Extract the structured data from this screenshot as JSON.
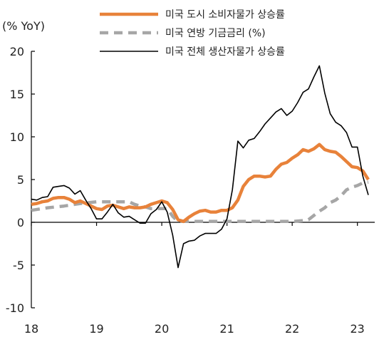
{
  "chart_data": {
    "type": "line",
    "y_unit_label": "(% YoY)",
    "ylim": [
      -10,
      20
    ],
    "y_ticks": [
      "20",
      "15",
      "10",
      "5",
      "0",
      "-5",
      "-10"
    ],
    "y_tick_values": [
      20,
      15,
      10,
      5,
      0,
      -5,
      -10
    ],
    "xlim": [
      2018.0,
      2023.2
    ],
    "x_ticks": [
      "18",
      "19",
      "20",
      "21",
      "22",
      "23"
    ],
    "x_tick_values": [
      2018,
      2019,
      2020,
      2021,
      2022,
      2023
    ],
    "grid": false,
    "legend_position": "top",
    "series": [
      {
        "name": "미국 도시 소비자물가 상승률",
        "color": "#E8823A",
        "style": "solid-thick",
        "x": [
          2018.0,
          2018.083,
          2018.167,
          2018.25,
          2018.333,
          2018.417,
          2018.5,
          2018.583,
          2018.667,
          2018.75,
          2018.833,
          2018.917,
          2019.0,
          2019.083,
          2019.167,
          2019.25,
          2019.333,
          2019.417,
          2019.5,
          2019.583,
          2019.667,
          2019.75,
          2019.833,
          2019.917,
          2020.0,
          2020.083,
          2020.167,
          2020.25,
          2020.333,
          2020.417,
          2020.5,
          2020.583,
          2020.667,
          2020.75,
          2020.833,
          2020.917,
          2021.0,
          2021.083,
          2021.167,
          2021.25,
          2021.333,
          2021.417,
          2021.5,
          2021.583,
          2021.667,
          2021.75,
          2021.833,
          2021.917,
          2022.0,
          2022.083,
          2022.167,
          2022.25,
          2022.333,
          2022.417,
          2022.5,
          2022.583,
          2022.667,
          2022.75,
          2022.833,
          2022.917,
          2023.0,
          2023.083,
          2023.167
        ],
        "values": [
          2.1,
          2.2,
          2.4,
          2.5,
          2.8,
          2.9,
          2.9,
          2.7,
          2.3,
          2.5,
          2.2,
          1.9,
          1.6,
          1.5,
          1.9,
          2.0,
          1.8,
          1.6,
          1.8,
          1.7,
          1.7,
          1.8,
          2.1,
          2.3,
          2.5,
          2.3,
          1.5,
          0.3,
          0.1,
          0.6,
          1.0,
          1.3,
          1.4,
          1.2,
          1.2,
          1.4,
          1.4,
          1.7,
          2.6,
          4.2,
          5.0,
          5.4,
          5.4,
          5.3,
          5.4,
          6.2,
          6.8,
          7.0,
          7.5,
          7.9,
          8.5,
          8.3,
          8.6,
          9.1,
          8.5,
          8.3,
          8.2,
          7.7,
          7.1,
          6.5,
          6.4,
          6.0,
          5.0
        ]
      },
      {
        "name": "미국 연방 기금금리 (%)",
        "color": "#A6A6A6",
        "style": "dashed",
        "x": [
          2018.0,
          2018.25,
          2018.5,
          2018.75,
          2019.0,
          2019.25,
          2019.5,
          2019.583,
          2019.667,
          2019.75,
          2019.833,
          2020.0,
          2020.083,
          2020.167,
          2020.25,
          2020.5,
          2021.0,
          2021.5,
          2022.0,
          2022.167,
          2022.25,
          2022.333,
          2022.417,
          2022.5,
          2022.583,
          2022.667,
          2022.75,
          2022.833,
          2022.917,
          2023.0,
          2023.083,
          2023.167
        ],
        "values": [
          1.4,
          1.7,
          1.9,
          2.2,
          2.4,
          2.4,
          2.4,
          2.1,
          1.9,
          1.8,
          1.6,
          1.6,
          1.6,
          0.7,
          0.1,
          0.1,
          0.1,
          0.1,
          0.1,
          0.2,
          0.3,
          0.8,
          1.3,
          1.7,
          2.3,
          2.6,
          3.1,
          3.8,
          4.1,
          4.3,
          4.6,
          4.7
        ]
      },
      {
        "name": "미국 전체 생산자물가 상승률",
        "color": "#000000",
        "style": "solid-thin",
        "x": [
          2018.0,
          2018.083,
          2018.167,
          2018.25,
          2018.333,
          2018.417,
          2018.5,
          2018.583,
          2018.667,
          2018.75,
          2018.833,
          2018.917,
          2019.0,
          2019.083,
          2019.167,
          2019.25,
          2019.333,
          2019.417,
          2019.5,
          2019.583,
          2019.667,
          2019.75,
          2019.833,
          2019.917,
          2020.0,
          2020.083,
          2020.167,
          2020.25,
          2020.333,
          2020.417,
          2020.5,
          2020.583,
          2020.667,
          2020.75,
          2020.833,
          2020.917,
          2021.0,
          2021.083,
          2021.167,
          2021.25,
          2021.333,
          2021.417,
          2021.5,
          2021.583,
          2021.667,
          2021.75,
          2021.833,
          2021.917,
          2022.0,
          2022.083,
          2022.167,
          2022.25,
          2022.333,
          2022.417,
          2022.5,
          2022.583,
          2022.667,
          2022.75,
          2022.833,
          2022.917,
          2023.0,
          2023.083,
          2023.167
        ],
        "values": [
          2.7,
          2.6,
          2.9,
          3.0,
          4.1,
          4.2,
          4.3,
          4.0,
          3.3,
          3.7,
          2.6,
          1.6,
          0.4,
          0.4,
          1.2,
          2.1,
          1.1,
          0.6,
          0.7,
          0.3,
          -0.1,
          -0.1,
          1.0,
          1.5,
          2.4,
          1.2,
          -1.5,
          -5.3,
          -2.5,
          -2.2,
          -2.1,
          -1.6,
          -1.3,
          -1.3,
          -1.3,
          -0.8,
          0.4,
          3.8,
          9.5,
          8.7,
          9.6,
          9.8,
          10.6,
          11.5,
          12.2,
          12.9,
          13.3,
          12.5,
          13.0,
          14.0,
          15.2,
          15.6,
          17.0,
          18.3,
          15.1,
          12.7,
          11.7,
          11.3,
          10.5,
          8.8,
          8.8,
          5.4,
          3.2
        ]
      }
    ]
  }
}
